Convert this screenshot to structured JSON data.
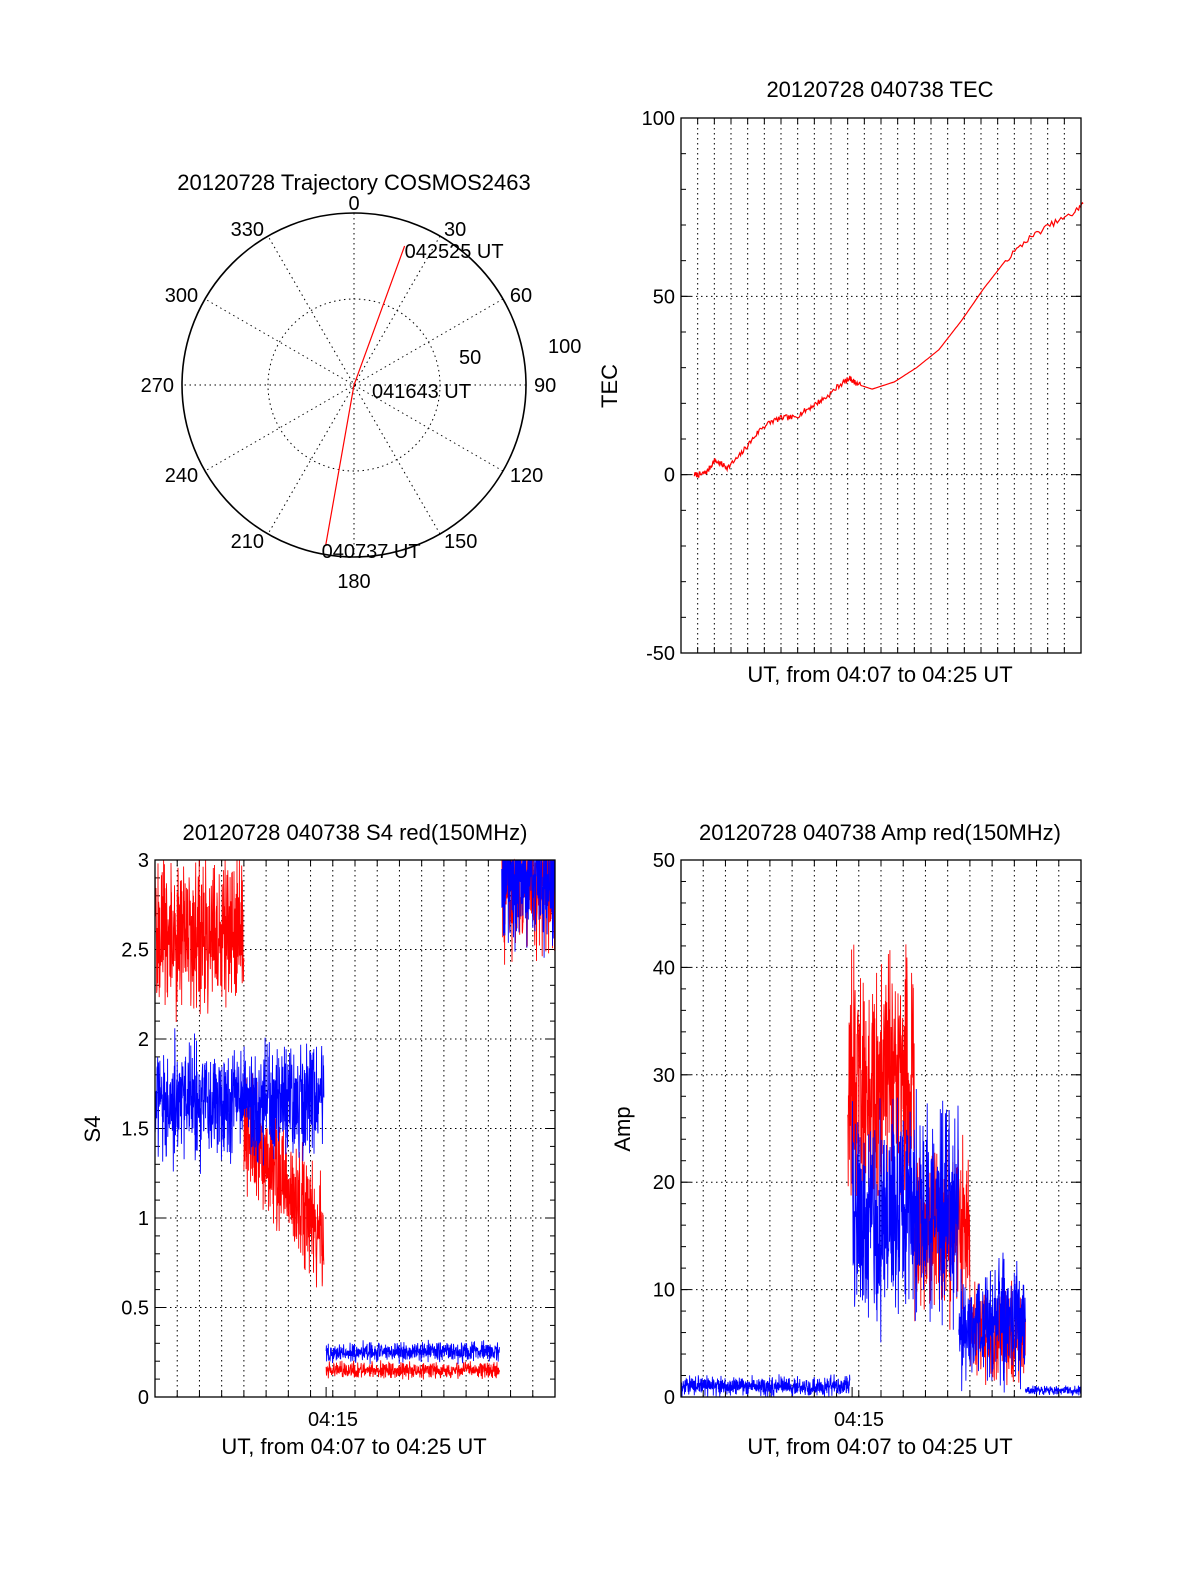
{
  "colors": {
    "red": "#ff0000",
    "blue": "#0000ff",
    "axis": "#000000"
  },
  "chart_data": [
    {
      "id": "polar",
      "type": "polar-trajectory",
      "title": "20120728 Trajectory COSMOS2463",
      "azimuth_labels": [
        "0",
        "30",
        "60",
        "90",
        "120",
        "150",
        "180",
        "210",
        "240",
        "270",
        "300",
        "330"
      ],
      "radial_labels": [
        "50",
        "100"
      ],
      "rlim": [
        0,
        100
      ],
      "grid": true,
      "trajectory": [
        {
          "az": 190,
          "r": 95
        },
        {
          "az": 10,
          "r": 0
        },
        {
          "az": 20,
          "r": 86
        }
      ],
      "annotations": [
        {
          "text": "042525 UT",
          "az": 20,
          "r": 86
        },
        {
          "text": "041643 UT",
          "az": 10,
          "r": 0
        },
        {
          "text": "040737 UT",
          "az": 190,
          "r": 95
        }
      ]
    },
    {
      "id": "tec",
      "type": "line",
      "title": "20120728 040738 TEC",
      "xlabel": "UT, from 04:07 to 04:25 UT",
      "ylabel": "TEC",
      "xlim": [
        "04:07",
        "04:25"
      ],
      "ylim": [
        -50,
        100
      ],
      "yticks": [
        "-50",
        "0",
        "50",
        "100"
      ],
      "grid": true,
      "series": [
        {
          "color": "red",
          "x_minutes": [
            0.0,
            0.3,
            0.6,
            0.9,
            1.2,
            1.5,
            2.0,
            2.5,
            3.0,
            3.5,
            4.0,
            4.5,
            5.0,
            5.5,
            6.0,
            6.5,
            7.0,
            7.2,
            7.5,
            8.0,
            9.0,
            10.0,
            11.0,
            12.0,
            13.0,
            14.0,
            15.0,
            16.0,
            17.0,
            17.5
          ],
          "values": [
            0,
            0,
            1,
            4,
            3,
            2,
            5,
            9,
            13,
            15,
            16,
            16,
            18,
            20,
            22,
            25,
            27,
            26,
            25,
            24,
            26,
            30,
            35,
            43,
            52,
            60,
            66,
            70,
            73,
            76
          ]
        }
      ]
    },
    {
      "id": "s4",
      "type": "line",
      "title": "20120728 040738 S4 red(150MHz)",
      "xlabel": "UT, from 04:07 to 04:25 UT",
      "ylabel": "S4",
      "xlim": [
        "04:07",
        "04:25"
      ],
      "ylim": [
        0,
        3
      ],
      "xticks": [
        {
          "label": "04:15",
          "min": 7.7
        }
      ],
      "yticks": [
        "0",
        "0.5",
        "1",
        "1.5",
        "2",
        "2.5",
        "3"
      ],
      "grid": true,
      "series": [
        {
          "color": "red",
          "segments": [
            {
              "x_range": [
                0.0,
                4.0
              ],
              "level": 2.6,
              "noise": 0.4,
              "clip_top": true
            },
            {
              "x_range": [
                4.0,
                7.6
              ],
              "level": 1.5,
              "noise": 0.3,
              "trend_end": 0.9
            },
            {
              "x_range": [
                7.7,
                15.5
              ],
              "level": 0.15,
              "noise": 0.04
            },
            {
              "x_range": [
                15.6,
                18.0
              ],
              "level": 2.9,
              "noise": 0.4,
              "clip_top": true
            }
          ]
        },
        {
          "color": "blue",
          "segments": [
            {
              "x_range": [
                0.0,
                7.6
              ],
              "level": 1.65,
              "noise": 0.3
            },
            {
              "x_range": [
                7.7,
                15.5
              ],
              "level": 0.25,
              "noise": 0.05
            },
            {
              "x_range": [
                15.6,
                18.0
              ],
              "level": 2.9,
              "noise": 0.35,
              "clip_top": true
            }
          ]
        }
      ]
    },
    {
      "id": "amp",
      "type": "line",
      "title": "20120728 040738 Amp red(150MHz)",
      "xlabel": "UT, from 04:07 to 04:25 UT",
      "ylabel": "Amp",
      "xlim": [
        "04:07",
        "04:25"
      ],
      "ylim": [
        0,
        50
      ],
      "xticks": [
        {
          "label": "04:15",
          "min": 7.7
        }
      ],
      "yticks": [
        "0",
        "10",
        "20",
        "30",
        "40",
        "50"
      ],
      "grid": true,
      "series": [
        {
          "color": "red",
          "segments": [
            {
              "x_range": [
                7.5,
                10.5
              ],
              "level": 30,
              "noise": 10
            },
            {
              "x_range": [
                10.5,
                13.0
              ],
              "level": 15,
              "noise": 7
            },
            {
              "x_range": [
                13.0,
                15.5
              ],
              "level": 6,
              "noise": 4
            }
          ]
        },
        {
          "color": "blue",
          "segments": [
            {
              "x_range": [
                0.0,
                7.6
              ],
              "level": 1,
              "noise": 0.8
            },
            {
              "x_range": [
                7.7,
                12.5
              ],
              "level": 17,
              "noise": 9
            },
            {
              "x_range": [
                12.5,
                15.5
              ],
              "level": 7,
              "noise": 5
            },
            {
              "x_range": [
                15.5,
                18.0
              ],
              "level": 0.6,
              "noise": 0.4
            }
          ]
        }
      ]
    }
  ]
}
